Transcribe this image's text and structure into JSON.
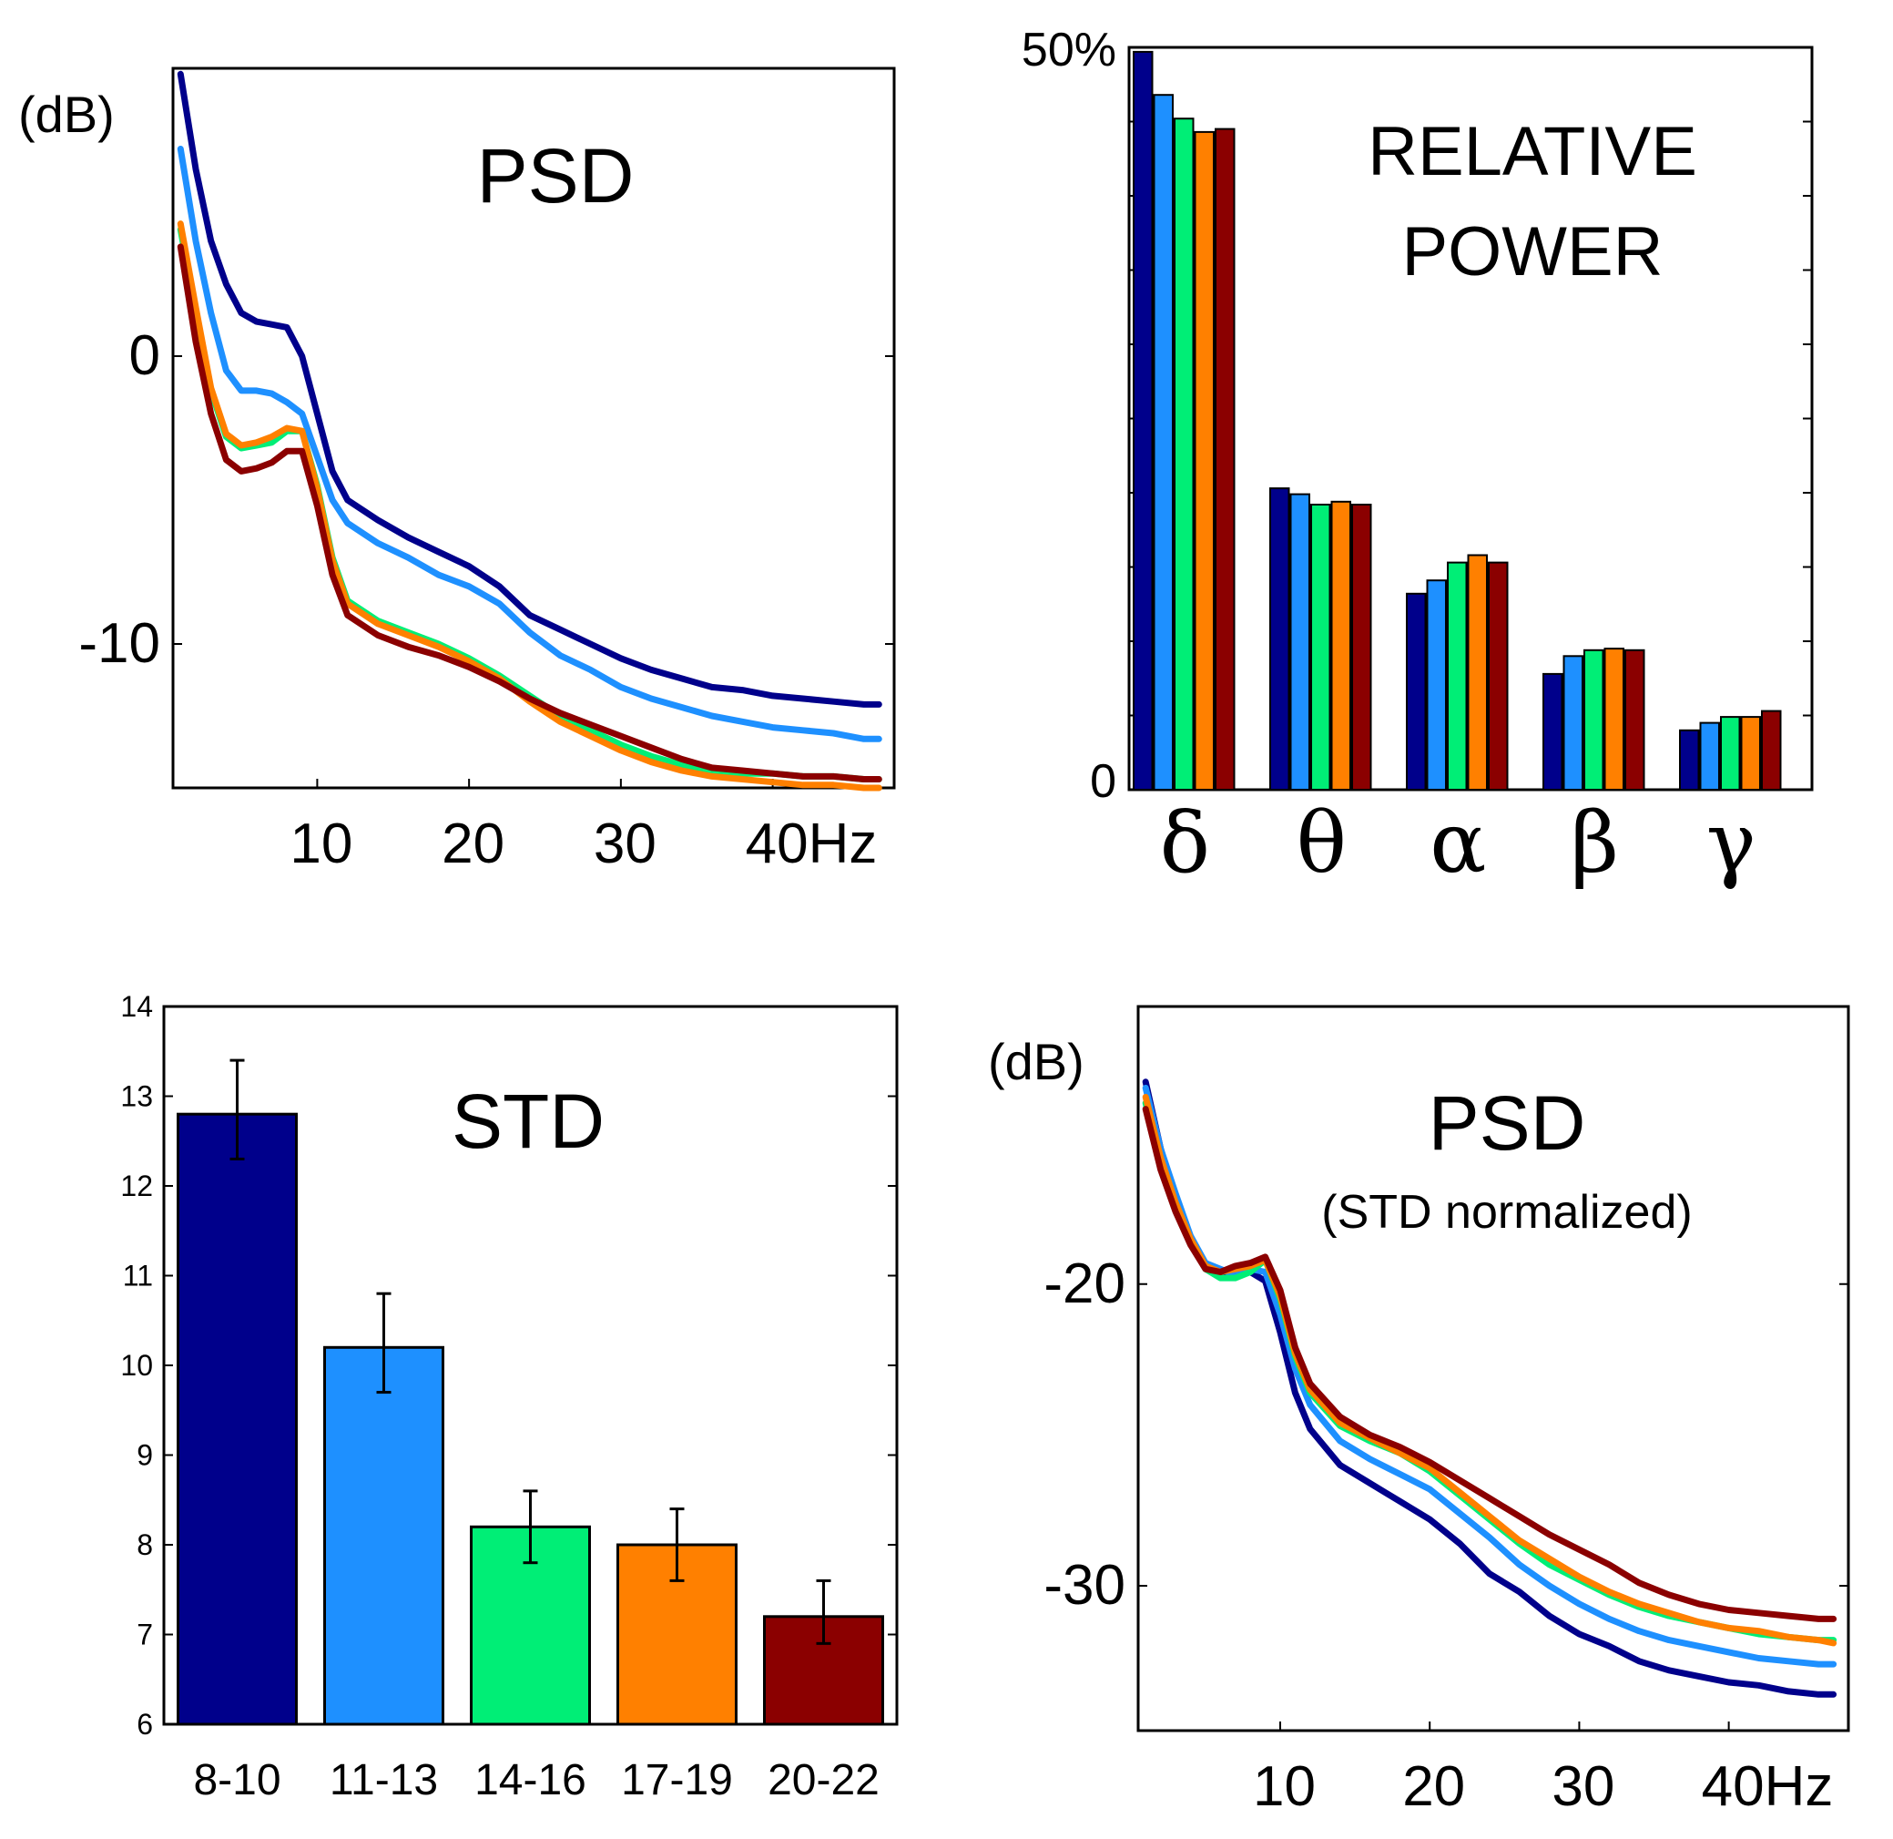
{
  "colors": [
    "#00008b",
    "#1e90ff",
    "#00ee76",
    "#ff8000",
    "#8b0000"
  ],
  "series_names": [
    "8-10",
    "11-13",
    "14-16",
    "17-19",
    "20-22"
  ],
  "chart_data": [
    {
      "type": "line",
      "title": "PSD",
      "ylabel": "(dB)",
      "xlim": [
        0.5,
        48
      ],
      "ylim": [
        -15,
        10
      ],
      "xticks": [
        {
          "value": 10,
          "label": "10"
        },
        {
          "value": 20,
          "label": "20"
        },
        {
          "value": 30,
          "label": "30"
        },
        {
          "value": 40,
          "label": "40Hz"
        }
      ],
      "yticks": [
        {
          "value": 0,
          "label": "0"
        },
        {
          "value": -10,
          "label": "-10"
        }
      ],
      "x": [
        1,
        2,
        3,
        4,
        5,
        6,
        7,
        8,
        9,
        10,
        11,
        12,
        14,
        16,
        18,
        20,
        22,
        24,
        26,
        28,
        30,
        32,
        34,
        36,
        38,
        40,
        42,
        44,
        46,
        47
      ],
      "series": [
        {
          "name": "8-10",
          "values": [
            9.8,
            6.5,
            4.0,
            2.5,
            1.5,
            1.2,
            1.1,
            1.0,
            0.0,
            -2.0,
            -4.0,
            -5.0,
            -5.7,
            -6.3,
            -6.8,
            -7.3,
            -8.0,
            -9.0,
            -9.5,
            -10.0,
            -10.5,
            -10.9,
            -11.2,
            -11.5,
            -11.6,
            -11.8,
            -11.9,
            -12.0,
            -12.1,
            -12.1
          ]
        },
        {
          "name": "11-13",
          "values": [
            7.2,
            4.0,
            1.5,
            -0.5,
            -1.2,
            -1.2,
            -1.3,
            -1.6,
            -2.0,
            -3.5,
            -5.0,
            -5.8,
            -6.5,
            -7.0,
            -7.6,
            -8.0,
            -8.6,
            -9.6,
            -10.4,
            -10.9,
            -11.5,
            -11.9,
            -12.2,
            -12.5,
            -12.7,
            -12.9,
            -13.0,
            -13.1,
            -13.3,
            -13.3
          ]
        },
        {
          "name": "14-16",
          "values": [
            4.4,
            1.5,
            -1.2,
            -2.8,
            -3.2,
            -3.1,
            -3.0,
            -2.6,
            -2.6,
            -4.5,
            -7.0,
            -8.5,
            -9.2,
            -9.6,
            -10.0,
            -10.5,
            -11.1,
            -11.8,
            -12.5,
            -13.0,
            -13.5,
            -13.9,
            -14.2,
            -14.4,
            -14.5,
            -14.5,
            -14.6,
            -14.6,
            -14.7,
            -14.7
          ]
        },
        {
          "name": "17-19",
          "values": [
            4.6,
            1.7,
            -1.1,
            -2.7,
            -3.1,
            -3.0,
            -2.8,
            -2.5,
            -2.6,
            -4.6,
            -7.1,
            -8.6,
            -9.3,
            -9.7,
            -10.1,
            -10.6,
            -11.2,
            -12.0,
            -12.7,
            -13.2,
            -13.7,
            -14.1,
            -14.4,
            -14.6,
            -14.7,
            -14.8,
            -14.9,
            -14.9,
            -15.0,
            -15.0
          ]
        },
        {
          "name": "20-22",
          "values": [
            3.8,
            0.5,
            -2.0,
            -3.6,
            -4.0,
            -3.9,
            -3.7,
            -3.3,
            -3.3,
            -5.2,
            -7.6,
            -9.0,
            -9.7,
            -10.1,
            -10.4,
            -10.8,
            -11.3,
            -11.9,
            -12.4,
            -12.8,
            -13.2,
            -13.6,
            -14.0,
            -14.3,
            -14.4,
            -14.5,
            -14.6,
            -14.6,
            -14.7,
            -14.7
          ]
        }
      ]
    },
    {
      "type": "bar",
      "title": "RELATIVE POWER",
      "title_lines": [
        "RELATIVE",
        "POWER"
      ],
      "ylim": [
        0,
        50
      ],
      "yticks": [
        {
          "value": 50,
          "label": "50%"
        },
        {
          "value": 0,
          "label": "0"
        }
      ],
      "categories": [
        "δ",
        "θ",
        "α",
        "β",
        "γ"
      ],
      "series": [
        {
          "name": "8-10",
          "values": [
            49.7,
            20.3,
            13.2,
            7.8,
            4.0
          ]
        },
        {
          "name": "11-13",
          "values": [
            46.8,
            19.9,
            14.1,
            9.0,
            4.5
          ]
        },
        {
          "name": "14-16",
          "values": [
            45.2,
            19.2,
            15.3,
            9.4,
            4.9
          ]
        },
        {
          "name": "17-19",
          "values": [
            44.3,
            19.4,
            15.8,
            9.5,
            4.9
          ]
        },
        {
          "name": "20-22",
          "values": [
            44.5,
            19.2,
            15.3,
            9.4,
            5.3
          ]
        }
      ]
    },
    {
      "type": "bar",
      "title": "STD",
      "ylim": [
        6,
        14
      ],
      "yticks": [
        {
          "value": 6,
          "label": "6"
        },
        {
          "value": 7,
          "label": "7"
        },
        {
          "value": 8,
          "label": "8"
        },
        {
          "value": 9,
          "label": "9"
        },
        {
          "value": 10,
          "label": "10"
        },
        {
          "value": 11,
          "label": "11"
        },
        {
          "value": 12,
          "label": "12"
        },
        {
          "value": 13,
          "label": "13"
        },
        {
          "value": 14,
          "label": "14"
        }
      ],
      "categories": [
        "8-10",
        "11-13",
        "14-16",
        "17-19",
        "20-22"
      ],
      "values": [
        12.8,
        10.2,
        8.2,
        8.0,
        7.2
      ],
      "err_low": [
        12.3,
        9.7,
        7.8,
        7.6,
        6.9
      ],
      "err_high": [
        13.4,
        10.8,
        8.6,
        8.4,
        7.6
      ]
    },
    {
      "type": "line",
      "title": "PSD",
      "subtitle": "(STD normalized)",
      "ylabel": "(dB)",
      "xlim": [
        0.5,
        48
      ],
      "ylim": [
        -34.8,
        -10.8
      ],
      "xticks": [
        {
          "value": 10,
          "label": "10"
        },
        {
          "value": 20,
          "label": "20"
        },
        {
          "value": 30,
          "label": "30"
        },
        {
          "value": 40,
          "label": "40Hz"
        }
      ],
      "yticks": [
        {
          "value": -20,
          "label": "-20"
        },
        {
          "value": -30,
          "label": "-30"
        }
      ],
      "x": [
        1,
        2,
        3,
        4,
        5,
        6,
        7,
        8,
        9,
        10,
        11,
        12,
        14,
        16,
        18,
        20,
        22,
        24,
        26,
        28,
        30,
        32,
        34,
        36,
        38,
        40,
        42,
        44,
        46,
        47
      ],
      "series": [
        {
          "name": "8-10",
          "values": [
            -13.3,
            -15.5,
            -17.2,
            -18.6,
            -19.4,
            -19.6,
            -19.7,
            -19.6,
            -19.9,
            -21.6,
            -23.6,
            -24.8,
            -26.0,
            -26.6,
            -27.2,
            -27.8,
            -28.6,
            -29.6,
            -30.2,
            -31.0,
            -31.6,
            -32.0,
            -32.5,
            -32.8,
            -33.0,
            -33.2,
            -33.3,
            -33.5,
            -33.6,
            -33.6
          ]
        },
        {
          "name": "11-13",
          "values": [
            -13.5,
            -15.5,
            -17.0,
            -18.4,
            -19.3,
            -19.5,
            -19.7,
            -19.5,
            -19.6,
            -21.0,
            -22.8,
            -24.0,
            -25.2,
            -25.8,
            -26.3,
            -26.8,
            -27.6,
            -28.4,
            -29.3,
            -30.0,
            -30.6,
            -31.1,
            -31.5,
            -31.8,
            -32.0,
            -32.2,
            -32.4,
            -32.5,
            -32.6,
            -32.6
          ]
        },
        {
          "name": "14-16",
          "values": [
            -14.0,
            -16.0,
            -17.4,
            -18.6,
            -19.5,
            -19.8,
            -19.8,
            -19.6,
            -19.2,
            -20.5,
            -22.4,
            -23.6,
            -24.7,
            -25.2,
            -25.6,
            -26.2,
            -27.0,
            -27.8,
            -28.6,
            -29.3,
            -29.8,
            -30.3,
            -30.7,
            -31.0,
            -31.2,
            -31.4,
            -31.6,
            -31.7,
            -31.8,
            -31.8
          ]
        },
        {
          "name": "17-19",
          "values": [
            -13.8,
            -15.8,
            -17.3,
            -18.5,
            -19.4,
            -19.6,
            -19.5,
            -19.4,
            -19.2,
            -20.4,
            -22.3,
            -23.5,
            -24.6,
            -25.1,
            -25.6,
            -26.1,
            -26.9,
            -27.7,
            -28.5,
            -29.1,
            -29.7,
            -30.2,
            -30.6,
            -30.9,
            -31.2,
            -31.4,
            -31.5,
            -31.7,
            -31.8,
            -31.9
          ]
        },
        {
          "name": "20-22",
          "values": [
            -14.2,
            -16.2,
            -17.6,
            -18.7,
            -19.5,
            -19.6,
            -19.4,
            -19.3,
            -19.1,
            -20.2,
            -22.1,
            -23.3,
            -24.4,
            -25.0,
            -25.4,
            -25.9,
            -26.5,
            -27.1,
            -27.7,
            -28.3,
            -28.8,
            -29.3,
            -29.9,
            -30.3,
            -30.6,
            -30.8,
            -30.9,
            -31.0,
            -31.1,
            -31.1
          ]
        }
      ]
    }
  ]
}
